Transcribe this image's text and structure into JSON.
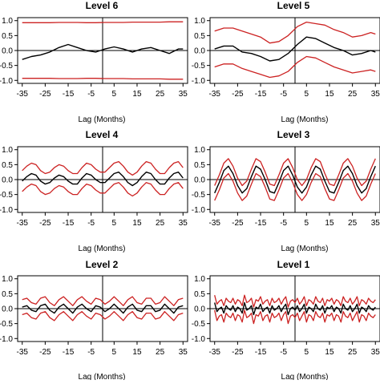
{
  "colors": {
    "series": "#000000",
    "bounds": "#cc2222",
    "axis": "#000000",
    "panel_bg": "#ffffff"
  },
  "chart_data": [
    {
      "type": "line",
      "title": "Level 6",
      "xlabel": "Lag (Months)",
      "ylabel": "",
      "xlim": [
        -37,
        37
      ],
      "ylim": [
        -1.1,
        1.1
      ],
      "xticks": [
        -35,
        -25,
        -15,
        -5,
        5,
        15,
        25,
        35
      ],
      "yticks": [
        1.0,
        0.5,
        0.0,
        -0.5,
        -1.0
      ],
      "ytick_labels": [
        "1.0",
        "0.5",
        "0.0",
        "-0.5",
        "-1.0"
      ],
      "x": [
        -35,
        -31,
        -27,
        -23,
        -19,
        -15,
        -11,
        -7,
        -3,
        1,
        5,
        9,
        13,
        17,
        21,
        25,
        29,
        33,
        35
      ],
      "series": [
        {
          "role": "estimate",
          "values": [
            -0.3,
            -0.2,
            -0.15,
            -0.05,
            0.1,
            0.2,
            0.1,
            0.0,
            -0.05,
            0.05,
            0.12,
            0.05,
            -0.05,
            0.05,
            0.1,
            0.0,
            -0.1,
            0.05,
            0.05
          ]
        },
        {
          "role": "upper",
          "values": [
            0.93,
            0.93,
            0.93,
            0.93,
            0.94,
            0.94,
            0.94,
            0.93,
            0.93,
            0.94,
            0.94,
            0.94,
            0.95,
            0.95,
            0.95,
            0.95,
            0.96,
            0.96,
            0.96
          ]
        },
        {
          "role": "lower",
          "values": [
            -0.93,
            -0.93,
            -0.93,
            -0.93,
            -0.94,
            -0.94,
            -0.94,
            -0.93,
            -0.93,
            -0.94,
            -0.94,
            -0.94,
            -0.95,
            -0.95,
            -0.95,
            -0.95,
            -0.96,
            -0.96,
            -0.96
          ]
        }
      ]
    },
    {
      "type": "line",
      "title": "Level 5",
      "xlabel": "Lag (Months)",
      "ylabel": "",
      "xlim": [
        -37,
        37
      ],
      "ylim": [
        -1.1,
        1.1
      ],
      "xticks": [
        -35,
        -25,
        -15,
        -5,
        5,
        15,
        25,
        35
      ],
      "yticks": [
        1.0,
        0.5,
        0.0,
        -0.5,
        -1.0
      ],
      "ytick_labels": [
        "1.0",
        "0.5",
        "0.0",
        "-0.5",
        "-1.0"
      ],
      "x": [
        -35,
        -31,
        -27,
        -23,
        -19,
        -15,
        -11,
        -7,
        -3,
        1,
        5,
        9,
        13,
        17,
        21,
        25,
        29,
        33,
        35
      ],
      "series": [
        {
          "role": "estimate",
          "values": [
            0.05,
            0.15,
            0.15,
            -0.05,
            -0.1,
            -0.2,
            -0.35,
            -0.3,
            -0.1,
            0.2,
            0.45,
            0.4,
            0.25,
            0.1,
            0.0,
            -0.15,
            -0.1,
            0.0,
            -0.05
          ]
        },
        {
          "role": "upper",
          "values": [
            0.65,
            0.75,
            0.75,
            0.65,
            0.55,
            0.45,
            0.25,
            0.3,
            0.5,
            0.8,
            0.95,
            0.9,
            0.85,
            0.7,
            0.6,
            0.45,
            0.5,
            0.6,
            0.55
          ]
        },
        {
          "role": "lower",
          "values": [
            -0.55,
            -0.45,
            -0.45,
            -0.6,
            -0.7,
            -0.8,
            -0.9,
            -0.85,
            -0.7,
            -0.4,
            -0.2,
            -0.25,
            -0.4,
            -0.55,
            -0.65,
            -0.75,
            -0.7,
            -0.65,
            -0.7
          ]
        }
      ]
    },
    {
      "type": "line",
      "title": "Level 4",
      "xlabel": "Lag (Months)",
      "ylabel": "",
      "xlim": [
        -37,
        37
      ],
      "ylim": [
        -1.1,
        1.1
      ],
      "xticks": [
        -35,
        -25,
        -15,
        -5,
        5,
        15,
        25,
        35
      ],
      "yticks": [
        1.0,
        0.5,
        0.0,
        -0.5,
        -1.0
      ],
      "ytick_labels": [
        "1.0",
        "0.5",
        "0.0",
        "-0.5",
        "-1.0"
      ],
      "x": [
        -35,
        -33,
        -31,
        -29,
        -27,
        -25,
        -23,
        -21,
        -19,
        -17,
        -15,
        -13,
        -11,
        -9,
        -7,
        -5,
        -3,
        -1,
        1,
        3,
        5,
        7,
        9,
        11,
        13,
        15,
        17,
        19,
        21,
        23,
        25,
        27,
        29,
        31,
        33,
        35
      ],
      "series": [
        {
          "role": "estimate",
          "values": [
            -0.05,
            0.1,
            0.2,
            0.15,
            -0.05,
            -0.15,
            -0.1,
            0.05,
            0.15,
            0.1,
            -0.05,
            -0.15,
            -0.15,
            0.05,
            0.2,
            0.15,
            0.0,
            -0.1,
            -0.1,
            0.05,
            0.2,
            0.25,
            0.1,
            -0.1,
            -0.2,
            -0.1,
            0.1,
            0.25,
            0.2,
            0.0,
            -0.15,
            -0.15,
            0.05,
            0.2,
            0.25,
            0.05
          ]
        },
        {
          "role": "upper",
          "values": [
            0.3,
            0.45,
            0.55,
            0.5,
            0.3,
            0.2,
            0.25,
            0.4,
            0.5,
            0.45,
            0.3,
            0.2,
            0.2,
            0.4,
            0.55,
            0.5,
            0.35,
            0.25,
            0.25,
            0.4,
            0.55,
            0.6,
            0.45,
            0.25,
            0.15,
            0.25,
            0.45,
            0.6,
            0.55,
            0.35,
            0.2,
            0.2,
            0.4,
            0.55,
            0.6,
            0.4
          ]
        },
        {
          "role": "lower",
          "values": [
            -0.4,
            -0.25,
            -0.15,
            -0.2,
            -0.4,
            -0.5,
            -0.45,
            -0.3,
            -0.2,
            -0.25,
            -0.4,
            -0.5,
            -0.5,
            -0.3,
            -0.15,
            -0.2,
            -0.35,
            -0.45,
            -0.45,
            -0.3,
            -0.15,
            -0.1,
            -0.25,
            -0.45,
            -0.55,
            -0.45,
            -0.25,
            -0.1,
            -0.15,
            -0.35,
            -0.5,
            -0.5,
            -0.3,
            -0.15,
            -0.1,
            -0.3
          ]
        }
      ]
    },
    {
      "type": "line",
      "title": "Level 3",
      "xlabel": "Lag (Months)",
      "ylabel": "",
      "xlim": [
        -37,
        37
      ],
      "ylim": [
        -1.1,
        1.1
      ],
      "xticks": [
        -35,
        -25,
        -15,
        -5,
        5,
        15,
        25,
        35
      ],
      "yticks": [
        1.0,
        0.5,
        0.0,
        -0.5,
        -1.0
      ],
      "ytick_labels": [
        "1.0",
        "0.5",
        "0.0",
        "-0.5",
        "-1.0"
      ],
      "x": [
        -35,
        -33,
        -31,
        -29,
        -27,
        -25,
        -23,
        -21,
        -19,
        -17,
        -15,
        -13,
        -11,
        -9,
        -7,
        -5,
        -3,
        -1,
        1,
        3,
        5,
        7,
        9,
        11,
        13,
        15,
        17,
        19,
        21,
        23,
        25,
        27,
        29,
        31,
        33,
        35
      ],
      "series": [
        {
          "role": "estimate",
          "values": [
            -0.45,
            -0.1,
            0.3,
            0.45,
            0.2,
            -0.2,
            -0.45,
            -0.3,
            0.1,
            0.45,
            0.35,
            0.0,
            -0.4,
            -0.45,
            -0.1,
            0.3,
            0.45,
            0.15,
            -0.25,
            -0.45,
            -0.25,
            0.15,
            0.45,
            0.35,
            -0.05,
            -0.4,
            -0.45,
            -0.1,
            0.3,
            0.45,
            0.2,
            -0.2,
            -0.45,
            -0.3,
            0.1,
            0.45
          ]
        },
        {
          "role": "upper",
          "values": [
            -0.2,
            0.15,
            0.55,
            0.7,
            0.45,
            0.05,
            -0.2,
            -0.05,
            0.35,
            0.7,
            0.6,
            0.25,
            -0.15,
            -0.2,
            0.15,
            0.55,
            0.7,
            0.4,
            0.0,
            -0.2,
            0.0,
            0.4,
            0.7,
            0.6,
            0.2,
            -0.15,
            -0.2,
            0.15,
            0.55,
            0.7,
            0.45,
            0.05,
            -0.2,
            -0.05,
            0.35,
            0.7
          ]
        },
        {
          "role": "lower",
          "values": [
            -0.7,
            -0.35,
            0.05,
            0.2,
            -0.05,
            -0.45,
            -0.7,
            -0.55,
            -0.15,
            0.2,
            0.1,
            -0.25,
            -0.65,
            -0.7,
            -0.35,
            0.05,
            0.2,
            -0.1,
            -0.5,
            -0.7,
            -0.5,
            -0.1,
            0.2,
            0.1,
            -0.3,
            -0.65,
            -0.7,
            -0.35,
            0.05,
            0.2,
            -0.05,
            -0.45,
            -0.7,
            -0.55,
            -0.15,
            0.2
          ]
        }
      ]
    },
    {
      "type": "line",
      "title": "Level 2",
      "xlabel": "Lag (Months)",
      "ylabel": "",
      "xlim": [
        -37,
        37
      ],
      "ylim": [
        -1.1,
        1.1
      ],
      "xticks": [
        -35,
        -25,
        -15,
        -5,
        5,
        15,
        25,
        35
      ],
      "yticks": [
        1.0,
        0.5,
        0.0,
        -0.5,
        -1.0
      ],
      "ytick_labels": [
        "1.0",
        "0.5",
        "0.0",
        "-0.5",
        "-1.0"
      ],
      "x": [
        -35,
        -33,
        -31,
        -29,
        -27,
        -25,
        -23,
        -21,
        -19,
        -17,
        -15,
        -13,
        -11,
        -9,
        -7,
        -5,
        -3,
        -1,
        1,
        3,
        5,
        7,
        9,
        11,
        13,
        15,
        17,
        19,
        21,
        23,
        25,
        27,
        29,
        31,
        33,
        35
      ],
      "series": [
        {
          "role": "estimate",
          "values": [
            0.05,
            0.1,
            -0.05,
            -0.1,
            0.1,
            0.15,
            -0.05,
            -0.15,
            0.05,
            0.15,
            0.0,
            -0.15,
            0.05,
            0.15,
            0.0,
            -0.1,
            0.1,
            0.05,
            -0.1,
            0.0,
            0.15,
            0.0,
            -0.15,
            0.05,
            0.15,
            -0.05,
            -0.1,
            0.1,
            0.1,
            -0.1,
            -0.05,
            0.15,
            0.0,
            -0.15,
            0.05,
            0.1
          ]
        },
        {
          "role": "upper",
          "values": [
            0.3,
            0.35,
            0.2,
            0.15,
            0.35,
            0.4,
            0.2,
            0.1,
            0.3,
            0.4,
            0.25,
            0.1,
            0.3,
            0.4,
            0.25,
            0.15,
            0.35,
            0.3,
            0.15,
            0.25,
            0.4,
            0.25,
            0.1,
            0.3,
            0.4,
            0.2,
            0.15,
            0.35,
            0.35,
            0.15,
            0.2,
            0.4,
            0.25,
            0.1,
            0.3,
            0.35
          ]
        },
        {
          "role": "lower",
          "values": [
            -0.2,
            -0.15,
            -0.3,
            -0.35,
            -0.15,
            -0.1,
            -0.3,
            -0.4,
            -0.2,
            -0.1,
            -0.25,
            -0.4,
            -0.2,
            -0.1,
            -0.25,
            -0.35,
            -0.15,
            -0.2,
            -0.35,
            -0.25,
            -0.1,
            -0.25,
            -0.4,
            -0.2,
            -0.1,
            -0.3,
            -0.35,
            -0.15,
            -0.15,
            -0.35,
            -0.3,
            -0.1,
            -0.25,
            -0.4,
            -0.2,
            -0.15
          ]
        }
      ]
    },
    {
      "type": "line",
      "title": "Level 1",
      "xlabel": "Lag (Months)",
      "ylabel": "",
      "xlim": [
        -37,
        37
      ],
      "ylim": [
        -1.1,
        1.1
      ],
      "xticks": [
        -35,
        -25,
        -15,
        -5,
        5,
        15,
        25,
        35
      ],
      "yticks": [
        1.0,
        0.5,
        0.0,
        -0.5,
        -1.0
      ],
      "ytick_labels": [
        "1.0",
        "0.5",
        "0.0",
        "-0.5",
        "-1.0"
      ],
      "x": [
        -35,
        -34,
        -33,
        -32,
        -31,
        -30,
        -29,
        -28,
        -27,
        -26,
        -25,
        -24,
        -23,
        -22,
        -21,
        -20,
        -19,
        -18,
        -17,
        -16,
        -15,
        -14,
        -13,
        -12,
        -11,
        -10,
        -9,
        -8,
        -7,
        -6,
        -5,
        -4,
        -3,
        -2,
        -1,
        0,
        1,
        2,
        3,
        4,
        5,
        6,
        7,
        8,
        9,
        10,
        11,
        12,
        13,
        14,
        15,
        16,
        17,
        18,
        19,
        20,
        21,
        22,
        23,
        24,
        25,
        26,
        27,
        28,
        29,
        30,
        31,
        32,
        33,
        34,
        35
      ],
      "series": [
        {
          "role": "estimate",
          "values": [
            0.2,
            -0.1,
            0.0,
            0.05,
            -0.15,
            0.1,
            0.0,
            -0.05,
            0.1,
            -0.1,
            0.05,
            0.0,
            -0.15,
            0.2,
            -0.05,
            0.0,
            0.1,
            -0.2,
            0.05,
            0.0,
            0.15,
            -0.1,
            0.0,
            0.05,
            -0.15,
            0.1,
            -0.05,
            0.0,
            0.1,
            -0.1,
            0.05,
            0.15,
            -0.2,
            0.0,
            0.05,
            -0.05,
            0.1,
            -0.1,
            0.0,
            0.15,
            -0.15,
            0.05,
            0.0,
            -0.1,
            0.15,
            0.0,
            -0.05,
            0.1,
            -0.15,
            0.05,
            0.0,
            0.1,
            -0.1,
            0.05,
            0.0,
            -0.15,
            0.15,
            0.0,
            -0.05,
            0.1,
            -0.1,
            0.0,
            0.15,
            -0.15,
            0.05,
            0.0,
            -0.1,
            0.1,
            0.0,
            -0.05,
            0.05
          ]
        },
        {
          "role": "upper",
          "values": [
            0.45,
            0.15,
            0.25,
            0.3,
            0.1,
            0.35,
            0.25,
            0.2,
            0.35,
            0.15,
            0.3,
            0.25,
            0.1,
            0.45,
            0.2,
            0.25,
            0.35,
            0.05,
            0.3,
            0.25,
            0.4,
            0.15,
            0.25,
            0.3,
            0.1,
            0.35,
            0.2,
            0.25,
            0.35,
            0.15,
            0.3,
            0.4,
            0.05,
            0.25,
            0.3,
            0.2,
            0.35,
            0.15,
            0.25,
            0.4,
            0.1,
            0.3,
            0.25,
            0.15,
            0.4,
            0.25,
            0.2,
            0.35,
            0.1,
            0.3,
            0.25,
            0.35,
            0.15,
            0.3,
            0.25,
            0.1,
            0.4,
            0.25,
            0.2,
            0.35,
            0.15,
            0.25,
            0.4,
            0.1,
            0.3,
            0.25,
            0.15,
            0.35,
            0.25,
            0.2,
            0.3
          ]
        },
        {
          "role": "lower",
          "values": [
            -0.05,
            -0.4,
            -0.25,
            -0.2,
            -0.45,
            -0.15,
            -0.25,
            -0.3,
            -0.15,
            -0.4,
            -0.2,
            -0.25,
            -0.45,
            -0.05,
            -0.3,
            -0.25,
            -0.15,
            -0.5,
            -0.2,
            -0.25,
            -0.1,
            -0.4,
            -0.25,
            -0.2,
            -0.45,
            -0.15,
            -0.3,
            -0.25,
            -0.15,
            -0.4,
            -0.2,
            -0.1,
            -0.5,
            -0.25,
            -0.2,
            -0.3,
            -0.15,
            -0.4,
            -0.25,
            -0.1,
            -0.45,
            -0.2,
            -0.25,
            -0.4,
            -0.1,
            -0.25,
            -0.3,
            -0.15,
            -0.45,
            -0.2,
            -0.25,
            -0.15,
            -0.4,
            -0.2,
            -0.25,
            -0.45,
            -0.1,
            -0.25,
            -0.3,
            -0.15,
            -0.4,
            -0.25,
            -0.1,
            -0.45,
            -0.2,
            -0.25,
            -0.4,
            -0.15,
            -0.25,
            -0.3,
            -0.2
          ]
        }
      ]
    }
  ]
}
